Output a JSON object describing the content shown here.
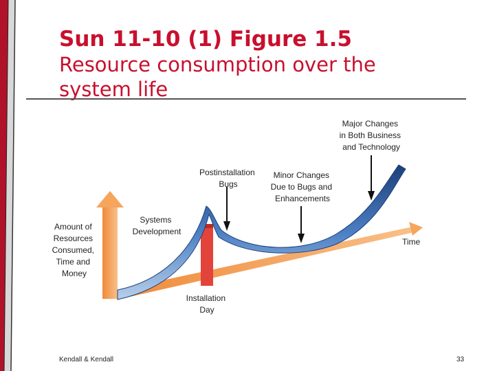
{
  "slide": {
    "title": "Sun 11-10 (1) Figure 1.5",
    "subtitle": "Resource consumption over the system life"
  },
  "diagram": {
    "axis_labels": {
      "y": [
        "Amount of",
        "Resources",
        "Consumed,",
        "Time and",
        "Money"
      ],
      "x": "Time"
    },
    "annotations": {
      "systems_development": [
        "Systems",
        "Development"
      ],
      "installation_day": [
        "Installation",
        "Day"
      ],
      "postinstallation_bugs": [
        "Postinstallation",
        "Bugs"
      ],
      "minor_changes": [
        "Minor Changes",
        "Due to Bugs and",
        "Enhancements"
      ],
      "major_changes": [
        "Major Changes",
        "in Both Business",
        "and Technology"
      ]
    },
    "colors": {
      "axis_orange": "#f5a55c",
      "curve_blue": "#2f5e9e",
      "installation_red": "#e2433b",
      "title_red": "#c8102e"
    }
  },
  "footer": {
    "left": "Kendall & Kendall",
    "right": "33"
  }
}
